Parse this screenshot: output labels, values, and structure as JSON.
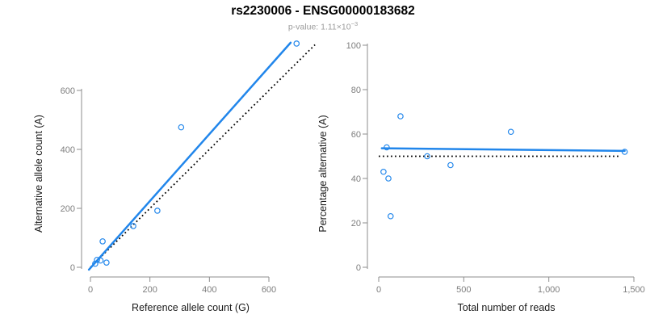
{
  "header": {
    "title": "rs2230006 - ENSG00000183682",
    "subtitle_prefix": "p-value: 1.11×10",
    "subtitle_exponent": "−3"
  },
  "colors": {
    "accent_blue": "#2186eb",
    "dotted_black": "#000000",
    "axis_gray": "#8d8d8d",
    "tick_label_gray": "#7e7e7e"
  },
  "chart_data": [
    {
      "type": "scatter",
      "panel": "left",
      "xlabel": "Reference allele count (G)",
      "ylabel": "Alternative allele count (A)",
      "xlim": [
        0,
        600
      ],
      "ylim": [
        0,
        600
      ],
      "xticks": [
        0,
        200,
        400,
        600
      ],
      "yticks": [
        0,
        200,
        400,
        600
      ],
      "grid": false,
      "points": [
        [
          16,
          12
        ],
        [
          22,
          25
        ],
        [
          34,
          23
        ],
        [
          54,
          16
        ],
        [
          41,
          88
        ],
        [
          144,
          140
        ],
        [
          225,
          192
        ],
        [
          305,
          475
        ],
        [
          693,
          759
        ]
      ],
      "regression_line": {
        "x1": -5,
        "y1": -8,
        "x2": 673,
        "y2": 762
      },
      "identity_line": {
        "x1": 0,
        "y1": 0,
        "x2": 755,
        "y2": 755
      }
    },
    {
      "type": "scatter",
      "panel": "right",
      "xlabel": "Total number of reads",
      "ylabel": "Percentage alternative (A)",
      "xlim": [
        0,
        1500
      ],
      "ylim": [
        0,
        100
      ],
      "xticks": [
        0,
        500,
        1000,
        1500
      ],
      "xtick_labels": [
        "0",
        "500",
        "1,000",
        "1,500"
      ],
      "yticks": [
        0,
        20,
        40,
        60,
        80,
        100
      ],
      "grid": false,
      "points": [
        [
          28,
          43
        ],
        [
          47,
          54
        ],
        [
          57,
          40
        ],
        [
          70,
          23
        ],
        [
          128,
          68
        ],
        [
          285,
          50
        ],
        [
          422,
          46
        ],
        [
          777,
          61
        ],
        [
          1446,
          52
        ]
      ],
      "regression_line": {
        "x1": 18,
        "y1": 53.6,
        "x2": 1446,
        "y2": 52.4
      },
      "identity_line": {
        "x1": 0,
        "y1": 50,
        "x2": 1420,
        "y2": 50
      }
    }
  ]
}
